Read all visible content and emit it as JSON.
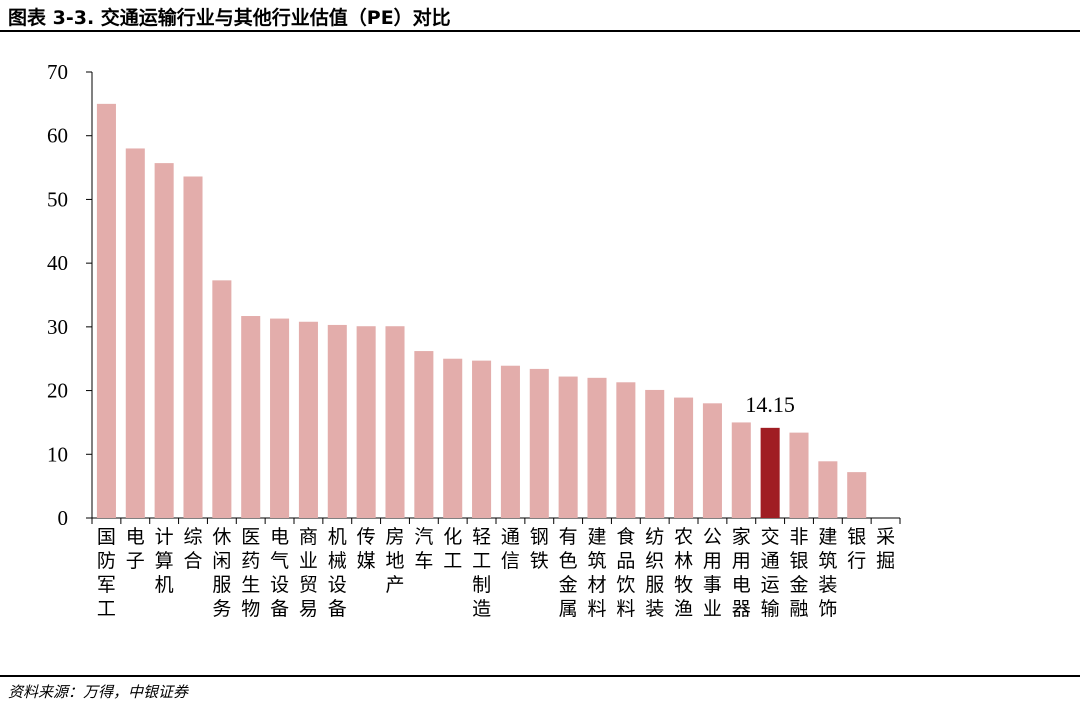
{
  "figure": {
    "title": "图表 3-3. 交通运输行业与其他行业估值（PE）对比",
    "source": "资料来源：万得，中银证券"
  },
  "colors": {
    "bar": "#e3adab",
    "highlight": "#a01d23",
    "axis": "#000000"
  },
  "chart_data": {
    "type": "bar",
    "title": "",
    "xlabel": "",
    "ylabel": "",
    "ylim": [
      0,
      70
    ],
    "yticks": [
      0,
      10,
      20,
      30,
      40,
      50,
      60,
      70
    ],
    "grid": false,
    "legend": "none",
    "categories": [
      "国防军工",
      "电子",
      "计算机",
      "综合",
      "休闲服务",
      "医药生物",
      "电气设备",
      "商业贸易",
      "机械设备",
      "传媒",
      "房地产",
      "汽车",
      "化工",
      "轻工制造",
      "通信",
      "钢铁",
      "有色金属",
      "建筑材料",
      "食品饮料",
      "纺织服装",
      "农林牧渔",
      "公用事业",
      "家用电器",
      "交通运输",
      "非银金融",
      "建筑装饰",
      "银行",
      "采掘"
    ],
    "values": [
      65.0,
      58.0,
      55.7,
      53.6,
      37.3,
      31.7,
      31.3,
      30.8,
      30.3,
      30.1,
      30.1,
      26.2,
      25.0,
      24.7,
      23.9,
      23.4,
      22.2,
      22.0,
      21.3,
      20.1,
      18.9,
      18.0,
      15.0,
      14.15,
      13.4,
      8.9,
      7.2,
      0
    ],
    "highlight_category": "交通运输",
    "data_labels": [
      {
        "category": "交通运输",
        "text": "14.15"
      }
    ]
  }
}
